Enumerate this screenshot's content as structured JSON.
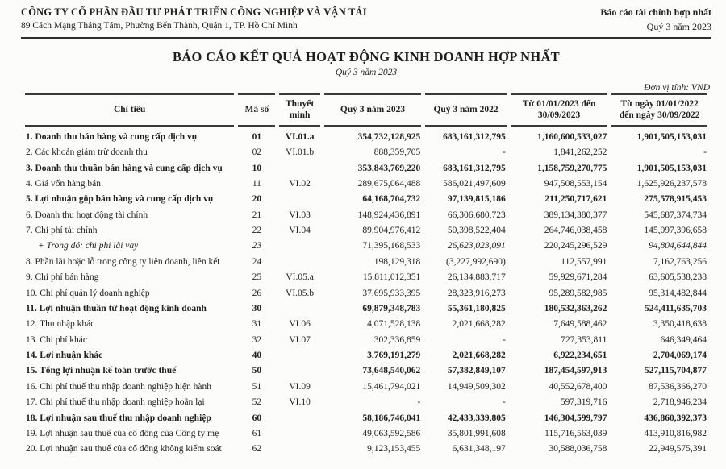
{
  "page": {
    "company_name": "CÔNG TY CỔ PHẦN ĐẦU TƯ PHÁT TRIỂN CÔNG NGHIỆP VÀ VẬN TẢI",
    "company_address": "89 Cách Mạng Tháng Tám, Phường Bến Thành, Quận 1, TP. Hồ Chí Minh",
    "report_type": "Báo cáo tài chính hợp nhất",
    "report_period": "Quý 3 năm 2023",
    "title": "BÁO CÁO KẾT QUẢ HOẠT ĐỘNG KINH DOANH HỢP NHẤT",
    "subtitle": "Quý 3 năm 2023",
    "unit_note": "Đơn vị tính: VND",
    "ink_color": "#1e1e1e",
    "rule_color": "#3a3a3a"
  },
  "table": {
    "headers": {
      "indicator": "Chỉ tiêu",
      "code": "Mã số",
      "note": "Thuyết minh",
      "q3_2023": "Quý 3 năm 2023",
      "q3_2022": "Quý 3 năm 2022",
      "ytd_2023": "Từ 01/01/2023 đến 30/09/2023",
      "ytd_2022": "Từ ngày 01/01/2022 đến ngày 30/09/2022"
    },
    "rows": [
      {
        "label": "1. Doanh thu bán hàng và cung cấp dịch vụ",
        "code": "01",
        "note": "VI.01.a",
        "values": [
          "354,732,128,925",
          "683,161,312,795",
          "1,160,600,533,027",
          "1,901,505,153,031"
        ],
        "emphasis": "bold"
      },
      {
        "label": "2. Các khoản giảm trừ doanh thu",
        "code": "02",
        "note": "VI.01.b",
        "values": [
          "888,359,705",
          "-",
          "1,841,262,252",
          "-"
        ],
        "emphasis": "normal"
      },
      {
        "label": "3. Doanh thu thuần bán hàng và cung cấp dịch vụ",
        "code": "10",
        "note": "",
        "values": [
          "353,843,769,220",
          "683,161,312,795",
          "1,158,759,270,775",
          "1,901,505,153,031"
        ],
        "emphasis": "bold"
      },
      {
        "label": "4. Giá vốn hàng bán",
        "code": "11",
        "note": "VI.02",
        "values": [
          "289,675,064,488",
          "586,021,497,609",
          "947,508,553,154",
          "1,625,926,237,578"
        ],
        "emphasis": "normal"
      },
      {
        "label": "5. Lợi nhuận gộp bán hàng và cung cấp dịch vụ",
        "code": "20",
        "note": "",
        "values": [
          "64,168,704,732",
          "97,139,815,186",
          "211,250,717,621",
          "275,578,915,453"
        ],
        "emphasis": "bold"
      },
      {
        "label": "6. Doanh thu hoạt động tài chính",
        "code": "21",
        "note": "VI.03",
        "values": [
          "148,924,436,891",
          "66,306,680,723",
          "389,134,380,377",
          "545,687,374,734"
        ],
        "emphasis": "normal"
      },
      {
        "label": "7. Chi phí tài chính",
        "code": "22",
        "note": "VI.04",
        "values": [
          "89,904,976,412",
          "50,398,522,404",
          "264,746,038,458",
          "145,097,396,658"
        ],
        "emphasis": "normal"
      },
      {
        "label": "+ Trong đó: chi phí lãi vay",
        "code": "23",
        "note": "",
        "values": [
          "71,395,168,533",
          "26,623,023,091",
          "220,245,296,529",
          "94,804,644,844"
        ],
        "emphasis": "sub",
        "italic_values": [
          false,
          true,
          false,
          true
        ]
      },
      {
        "label": "8. Phần lãi hoặc lỗ trong công ty liên doanh, liên kết",
        "code": "24",
        "note": "",
        "values": [
          "198,129,318",
          "(3,227,992,690)",
          "112,557,991",
          "7,162,763,256"
        ],
        "emphasis": "normal"
      },
      {
        "label": "9. Chi phí bán hàng",
        "code": "25",
        "note": "VI.05.a",
        "values": [
          "15,811,012,351",
          "26,134,883,717",
          "59,929,671,284",
          "63,605,538,238"
        ],
        "emphasis": "normal"
      },
      {
        "label": "10. Chi phí quản lý doanh nghiệp",
        "code": "26",
        "note": "VI.05.b",
        "values": [
          "37,695,933,395",
          "28,323,916,273",
          "95,289,582,985",
          "95,314,482,844"
        ],
        "emphasis": "normal"
      },
      {
        "label": "11. Lợi nhuận thuần từ hoạt động kinh doanh",
        "code": "30",
        "note": "",
        "values": [
          "69,879,348,783",
          "55,361,180,825",
          "180,532,363,262",
          "524,411,635,703"
        ],
        "emphasis": "bold"
      },
      {
        "label": "12. Thu nhập khác",
        "code": "31",
        "note": "VI.06",
        "values": [
          "4,071,528,138",
          "2,021,668,282",
          "7,649,588,462",
          "3,350,418,638"
        ],
        "emphasis": "normal"
      },
      {
        "label": "13. Chi phí khác",
        "code": "32",
        "note": "VI.07",
        "values": [
          "302,336,859",
          "-",
          "727,353,811",
          "646,349,464"
        ],
        "emphasis": "normal"
      },
      {
        "label": "14. Lợi nhuận khác",
        "code": "40",
        "note": "",
        "values": [
          "3,769,191,279",
          "2,021,668,282",
          "6,922,234,651",
          "2,704,069,174"
        ],
        "emphasis": "bold"
      },
      {
        "label": "15. Tổng lợi nhuận kế toán trước thuế",
        "code": "50",
        "note": "",
        "values": [
          "73,648,540,062",
          "57,382,849,107",
          "187,454,597,913",
          "527,115,704,877"
        ],
        "emphasis": "bold"
      },
      {
        "label": "16. Chi phí thuế thu nhập doanh nghiệp hiện hành",
        "code": "51",
        "note": "VI.09",
        "values": [
          "15,461,794,021",
          "14,949,509,302",
          "40,552,678,400",
          "87,536,366,270"
        ],
        "emphasis": "normal"
      },
      {
        "label": "17. Chi phí thuế thu nhập doanh nghiệp hoãn lại",
        "code": "52",
        "note": "VI.10",
        "values": [
          "-",
          "-",
          "597,319,716",
          "2,718,946,234"
        ],
        "emphasis": "normal"
      },
      {
        "label": "18. Lợi nhuận sau thuế thu nhập doanh nghiệp",
        "code": "60",
        "note": "",
        "values": [
          "58,186,746,041",
          "42,433,339,805",
          "146,304,599,797",
          "436,860,392,373"
        ],
        "emphasis": "bold"
      },
      {
        "label": "19. Lợi nhuận sau thuế của cổ đông của Công ty mẹ",
        "code": "61",
        "note": "",
        "values": [
          "49,063,592,586",
          "35,801,991,608",
          "115,716,563,039",
          "413,910,816,982"
        ],
        "emphasis": "normal"
      },
      {
        "label": "20. Lợi nhuận sau thuế của cổ đông không kiểm soát",
        "code": "62",
        "note": "",
        "values": [
          "9,123,153,455",
          "6,631,348,197",
          "30,588,036,758",
          "22,949,575,391"
        ],
        "emphasis": "normal"
      }
    ]
  }
}
